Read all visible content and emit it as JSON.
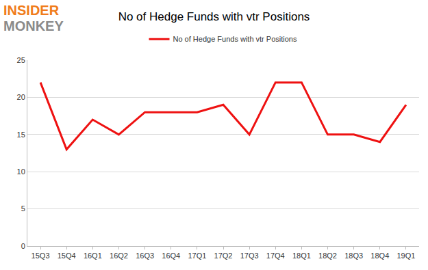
{
  "chart_data": {
    "type": "line",
    "title": "No of Hedge Funds with vtr Positions",
    "annotations": [
      "INSIDER",
      "MONKEY"
    ],
    "categories": [
      "15Q3",
      "15Q4",
      "16Q1",
      "16Q2",
      "16Q3",
      "16Q4",
      "17Q1",
      "17Q2",
      "17Q3",
      "17Q4",
      "18Q1",
      "18Q2",
      "18Q3",
      "18Q4",
      "19Q1"
    ],
    "series": [
      {
        "name": "No of Hedge Funds with vtr Positions",
        "color": "#ee1111",
        "values": [
          22,
          13,
          17,
          15,
          18,
          18,
          18,
          19,
          15,
          22,
          22,
          15,
          15,
          14,
          19
        ]
      }
    ],
    "ylim": [
      0,
      25
    ],
    "yticks": [
      0,
      5,
      10,
      15,
      20,
      25
    ],
    "grid": true,
    "legend": "top"
  }
}
